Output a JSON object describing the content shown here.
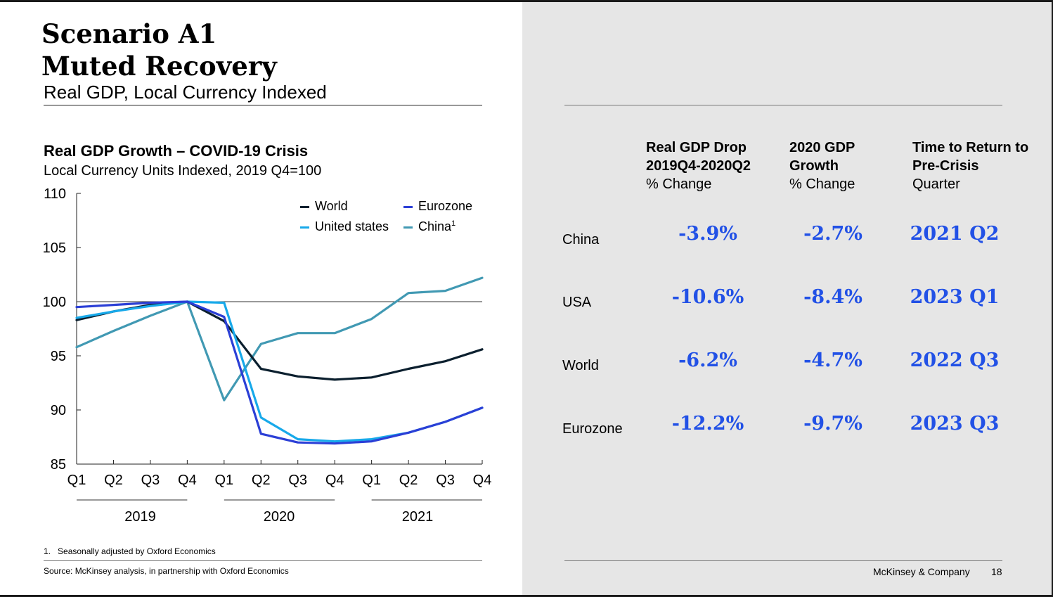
{
  "slide": {
    "title_line1": "Scenario A1",
    "title_line2": "Muted Recovery",
    "subtitle": "Real GDP, Local Currency Indexed",
    "footnote": "1.   Seasonally adjusted by Oxford Economics",
    "source": "Source: McKinsey analysis, in partnership with Oxford Economics",
    "company": "McKinsey & Company",
    "page_number": "18"
  },
  "chart_data": {
    "type": "line",
    "title": "Real GDP Growth – COVID-19 Crisis",
    "subtitle": "Local Currency Units Indexed, 2019 Q4=100",
    "x": [
      "Q1",
      "Q2",
      "Q3",
      "Q4",
      "Q1",
      "Q2",
      "Q3",
      "Q4",
      "Q1",
      "Q2",
      "Q3",
      "Q4"
    ],
    "year_groups": [
      {
        "label": "2019",
        "start": 0,
        "end": 3
      },
      {
        "label": "2020",
        "start": 4,
        "end": 7
      },
      {
        "label": "2021",
        "start": 8,
        "end": 11
      }
    ],
    "ylim": [
      85,
      110
    ],
    "yticks": [
      85,
      90,
      95,
      100,
      105,
      110
    ],
    "reference_line": 100,
    "legend_position": "top-right",
    "series": [
      {
        "name": "World",
        "color": "#0b1f2e",
        "values": [
          98.3,
          99.1,
          99.7,
          100.0,
          98.2,
          93.8,
          93.1,
          92.8,
          93.0,
          93.8,
          94.5,
          95.6
        ]
      },
      {
        "name": "Eurozone",
        "color": "#2b3fd6",
        "values": [
          99.5,
          99.7,
          99.9,
          100.0,
          98.6,
          87.8,
          87.0,
          86.9,
          87.1,
          87.9,
          88.9,
          90.2
        ]
      },
      {
        "name": "United states",
        "color": "#17a9ea",
        "values": [
          98.5,
          99.1,
          99.6,
          100.0,
          99.9,
          89.3,
          87.3,
          87.1,
          87.3,
          87.9,
          88.9,
          90.2
        ]
      },
      {
        "name": "China",
        "legend_label": "China",
        "superscript": "1",
        "color": "#4199b3",
        "values": [
          95.8,
          97.3,
          98.7,
          100.0,
          90.9,
          96.1,
          97.1,
          97.1,
          98.4,
          100.8,
          101.0,
          102.2
        ]
      }
    ]
  },
  "table": {
    "headers": [
      {
        "bold_lines": [
          "Real GDP Drop",
          "2019Q4-2020Q2"
        ],
        "sub": "% Change"
      },
      {
        "bold_lines": [
          "2020 GDP",
          "Growth"
        ],
        "sub": "% Change"
      },
      {
        "bold_lines": [
          "Time to Return to",
          "Pre-Crisis"
        ],
        "sub": "Quarter"
      }
    ],
    "rows": [
      {
        "label": "China",
        "drop": "-3.9%",
        "growth": "-2.7%",
        "return": "2021 Q2"
      },
      {
        "label": "USA",
        "drop": "-10.6%",
        "growth": "-8.4%",
        "return": "2023 Q1"
      },
      {
        "label": "World",
        "drop": "-6.2%",
        "growth": "-4.7%",
        "return": "2022 Q3"
      },
      {
        "label": "Eurozone",
        "drop": "-12.2%",
        "growth": "-9.7%",
        "return": "2023 Q3"
      }
    ]
  }
}
